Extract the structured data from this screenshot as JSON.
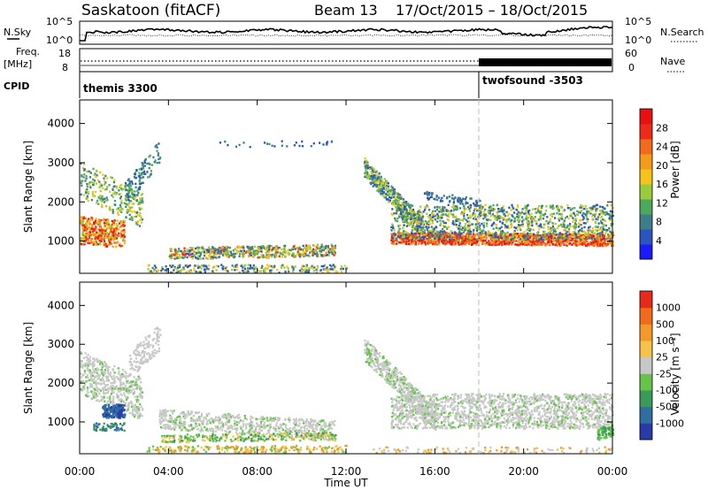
{
  "header": {
    "station": "Saskatoon (fitACF)",
    "beam": "Beam 13",
    "date_range": "17/Oct/2015 – 18/Oct/2015"
  },
  "noise_panel": {
    "left_label": "N.Sky",
    "right_label": "N.Search",
    "left_ticks": [
      "10^5",
      "10^0"
    ],
    "right_ticks": [
      "10^5",
      "10^0"
    ]
  },
  "freq_panel": {
    "left_label_1": "Freq.",
    "left_label_2": "[MHz]",
    "right_label": "Nave",
    "left_ticks": [
      "18",
      "8"
    ],
    "right_ticks": [
      "60",
      "0"
    ]
  },
  "cpid_panel": {
    "label": "CPID",
    "modes": [
      {
        "name": "themis 3300",
        "start_hour": 0
      },
      {
        "name": "twofsound -3503",
        "start_hour": 18
      }
    ]
  },
  "chart_data": [
    {
      "type": "heatmap",
      "name": "power",
      "xlabel": "",
      "ylabel": "Slant Range [km]",
      "xlim": [
        0,
        24
      ],
      "ylim": [
        180,
        4600
      ],
      "yticks": [
        1000,
        2000,
        3000,
        4000
      ],
      "colorbar": {
        "label": "Power [dB]",
        "ticks": [
          "4",
          "8",
          "12",
          "16",
          "20",
          "24",
          "28"
        ],
        "colors": [
          "#1a1aff",
          "#2a55c0",
          "#3e7d8a",
          "#4ca85a",
          "#9acc3a",
          "#f5c31a",
          "#f59a1a",
          "#f26a1a",
          "#ee2a1a",
          "#e81010"
        ]
      }
    },
    {
      "type": "heatmap",
      "name": "velocity",
      "xlabel": "Time UT",
      "ylabel": "Slant Range [km]",
      "xlim": [
        0,
        24
      ],
      "ylim": [
        180,
        4600
      ],
      "yticks": [
        1000,
        2000,
        3000,
        4000
      ],
      "xticks": [
        "00:00",
        "04:00",
        "08:00",
        "12:00",
        "16:00",
        "20:00",
        "00:00"
      ],
      "colorbar": {
        "label": "Velocity [m s⁻¹]",
        "ticks": [
          "1000",
          "500",
          "100",
          "25",
          "-25",
          "-100",
          "-500",
          "-1000"
        ],
        "colors": [
          "#2a3aa8",
          "#2e6ea0",
          "#3a9a5a",
          "#66c44a",
          "#c8c8c8",
          "#f5c34a",
          "#f59a2a",
          "#f26a1a",
          "#e82a1a"
        ]
      }
    }
  ]
}
